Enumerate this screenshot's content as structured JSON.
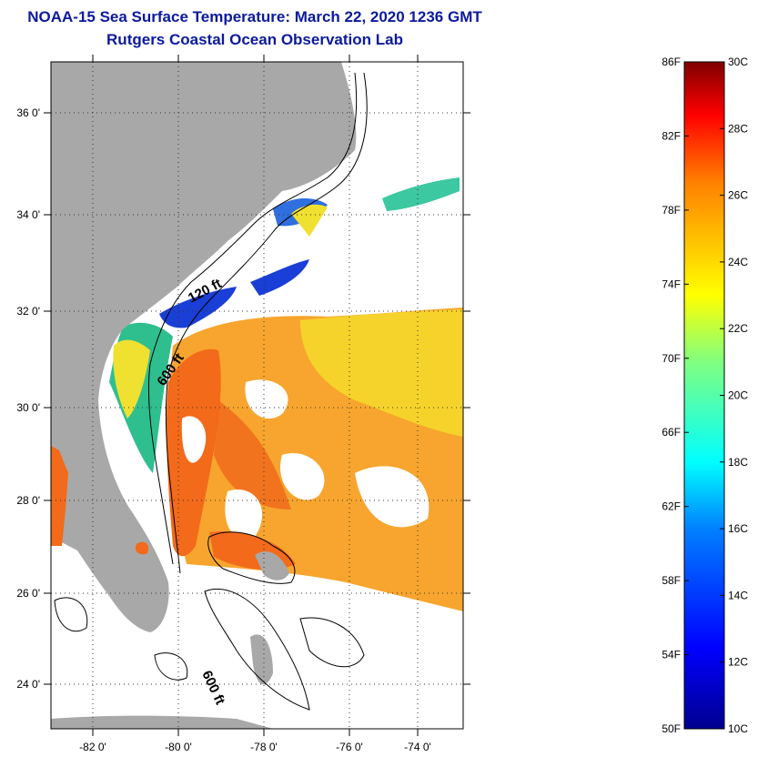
{
  "header": {
    "title": "NOAA-15 Sea Surface Temperature:  March 22, 2020 1236 GMT",
    "subtitle": "Rutgers Coastal Ocean Observation Lab"
  },
  "map": {
    "lat_ticks": [
      "36 0'",
      "34 0'",
      "32 0'",
      "30 0'",
      "28 0'",
      "26 0'",
      "24 0'"
    ],
    "lon_ticks": [
      "-82 0'",
      "-80 0'",
      "-78 0'",
      "-76 0'",
      "-74 0'"
    ],
    "contours": [
      "120 ft",
      "600 ft",
      "600 ft"
    ],
    "colors": {
      "land": "#a8a8a8",
      "warm": "#f26a1a",
      "orange": "#f7a023",
      "yellow": "#f5d82a",
      "cold": "#1a3fd6"
    }
  },
  "colorbar": {
    "fahrenheit": [
      "86F",
      "82F",
      "78F",
      "74F",
      "70F",
      "66F",
      "62F",
      "58F",
      "54F",
      "50F"
    ],
    "celsius": [
      "30C",
      "28C",
      "26C",
      "24C",
      "22C",
      "20C",
      "18C",
      "16C",
      "14C",
      "12C",
      "10C"
    ]
  }
}
